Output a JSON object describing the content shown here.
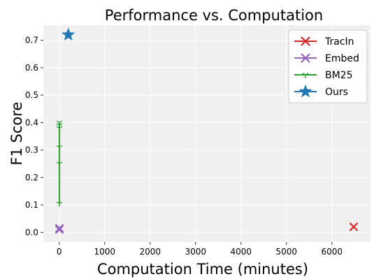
{
  "chart_data": {
    "type": "line",
    "title": "Performance vs. Computation",
    "xlabel": "Computation Time (minutes)",
    "ylabel": "F1 Score",
    "xlim": [
      -350,
      6850
    ],
    "ylim": [
      -0.035,
      0.755
    ],
    "xticks": [
      0,
      1000,
      2000,
      3000,
      4000,
      5000,
      6000
    ],
    "yticks": [
      0.0,
      0.1,
      0.2,
      0.3,
      0.4,
      0.5,
      0.6,
      0.7
    ],
    "ytick_labels": [
      "0.0",
      "0.1",
      "0.2",
      "0.3",
      "0.4",
      "0.5",
      "0.6",
      "0.7"
    ],
    "grid": true,
    "legend_position": "top-right",
    "series": [
      {
        "name": "TracIn",
        "color": "#d62728",
        "marker": "x",
        "x": [
          6480
        ],
        "y": [
          0.02
        ]
      },
      {
        "name": "Embed",
        "color": "#9467bd",
        "marker": "x",
        "x": [
          2,
          5
        ],
        "y": [
          0.01,
          0.015
        ]
      },
      {
        "name": "BM25",
        "color": "#2ca02c",
        "marker": "tri_down",
        "x": [
          3,
          3,
          3,
          3,
          3,
          3
        ],
        "y": [
          0.105,
          0.25,
          0.31,
          0.38,
          0.39,
          0.4
        ]
      },
      {
        "name": "Ours",
        "color": "#1f77b4",
        "marker": "star",
        "x": [
          200
        ],
        "y": [
          0.72
        ]
      }
    ]
  }
}
